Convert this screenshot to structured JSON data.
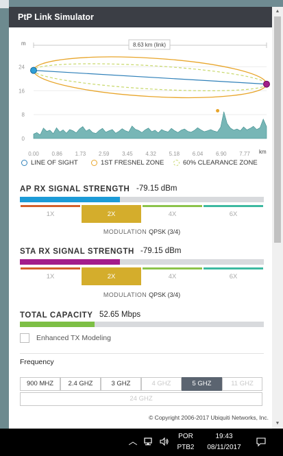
{
  "panel": {
    "title": "PtP Link Simulator"
  },
  "profile": {
    "y_unit": "m",
    "x_unit": "km",
    "link_label": "8.63 km (link)",
    "y_ticks": [
      "24",
      "16",
      "8",
      "0"
    ],
    "x_ticks": [
      "0.00",
      "0.86",
      "1.73",
      "2.59",
      "3.45",
      "4.32",
      "5.18",
      "6.04",
      "6.90",
      "7.77"
    ],
    "colors": {
      "terrain": "#5fa9a9",
      "line_of_sight": "#2f80b9",
      "fresnel": "#e8a52a",
      "clearance": "#c8d86a",
      "ap_dot": "#2f9fd6",
      "sta_dot": "#a21f8a"
    },
    "terrain_profile": [
      1.5,
      2.0,
      1.2,
      3.5,
      2.4,
      2.8,
      1.6,
      3.6,
      2.2,
      2.9,
      1.8,
      3.0,
      2.6,
      1.9,
      3.2,
      4.0,
      2.5,
      3.1,
      2.0,
      1.7,
      2.7,
      3.4,
      2.1,
      2.6,
      3.0,
      1.8,
      2.4,
      3.3,
      2.6,
      2.2,
      4.2,
      3.1,
      2.7,
      2.0,
      2.9,
      3.5,
      2.3,
      2.8,
      1.9,
      3.0,
      2.5,
      2.2,
      3.4,
      2.6,
      2.0,
      2.8,
      3.2,
      2.4,
      2.1,
      2.7,
      3.6,
      2.9,
      2.3,
      2.6,
      3.0,
      2.5,
      2.2,
      3.8,
      9.0,
      5.0,
      3.5,
      2.8,
      3.2,
      2.6,
      3.9,
      2.9,
      3.4,
      4.1,
      3.0,
      3.6,
      6.5,
      4.0
    ]
  },
  "legend": {
    "line_of_sight": "LINE OF SIGHT",
    "fresnel_zone": "1ST FRESNEL ZONE",
    "clearance_zone": "60% CLEARANCE ZONE"
  },
  "ap": {
    "title": "AP RX SIGNAL STRENGTH",
    "value": "-79.15 dBm",
    "strength_fraction": 0.41,
    "bar_color": "#1d9bd7",
    "modulation_label": "MODULATION",
    "modulation_value": "QPSK (3/4)"
  },
  "sta": {
    "title": "STA RX SIGNAL STRENGTH",
    "value": "-79.15 dBm",
    "strength_fraction": 0.41,
    "bar_color": "#a31c8b",
    "modulation_label": "MODULATION",
    "modulation_value": "QPSK (3/4)"
  },
  "modulation_levels": [
    {
      "label": "1X",
      "color": "#d4602a",
      "active": false
    },
    {
      "label": "2X",
      "color": "#d4ad2c",
      "active": true
    },
    {
      "label": "4X",
      "color": "#8bc34a",
      "active": false
    },
    {
      "label": "6X",
      "color": "#3cb9a0",
      "active": false
    }
  ],
  "capacity": {
    "title": "TOTAL CAPACITY",
    "value": "52.65 Mbps",
    "fraction": 0.305,
    "bar_color": "#7dbf45"
  },
  "enhanced_tx": {
    "label": "Enhanced TX Modeling",
    "checked": false
  },
  "frequency": {
    "title": "Frequency",
    "options": [
      {
        "label": "900 MHZ",
        "state": "normal"
      },
      {
        "label": "2.4 GHZ",
        "state": "normal"
      },
      {
        "label": "3 GHZ",
        "state": "normal"
      },
      {
        "label": "4 GHZ",
        "state": "disabled"
      },
      {
        "label": "5 GHZ",
        "state": "active"
      },
      {
        "label": "11 GHZ",
        "state": "disabled"
      },
      {
        "label": "24 GHZ",
        "state": "disabled"
      }
    ]
  },
  "footer": {
    "copyright": "© Copyright 2006-2017 Ubiquiti Networks, Inc."
  },
  "taskbar": {
    "language_line1": "POR",
    "language_line2": "PTB2",
    "time": "19:43",
    "date": "08/11/2017",
    "icons": [
      "chevron-up-icon",
      "network-icon",
      "volume-icon",
      "notification-icon"
    ]
  }
}
